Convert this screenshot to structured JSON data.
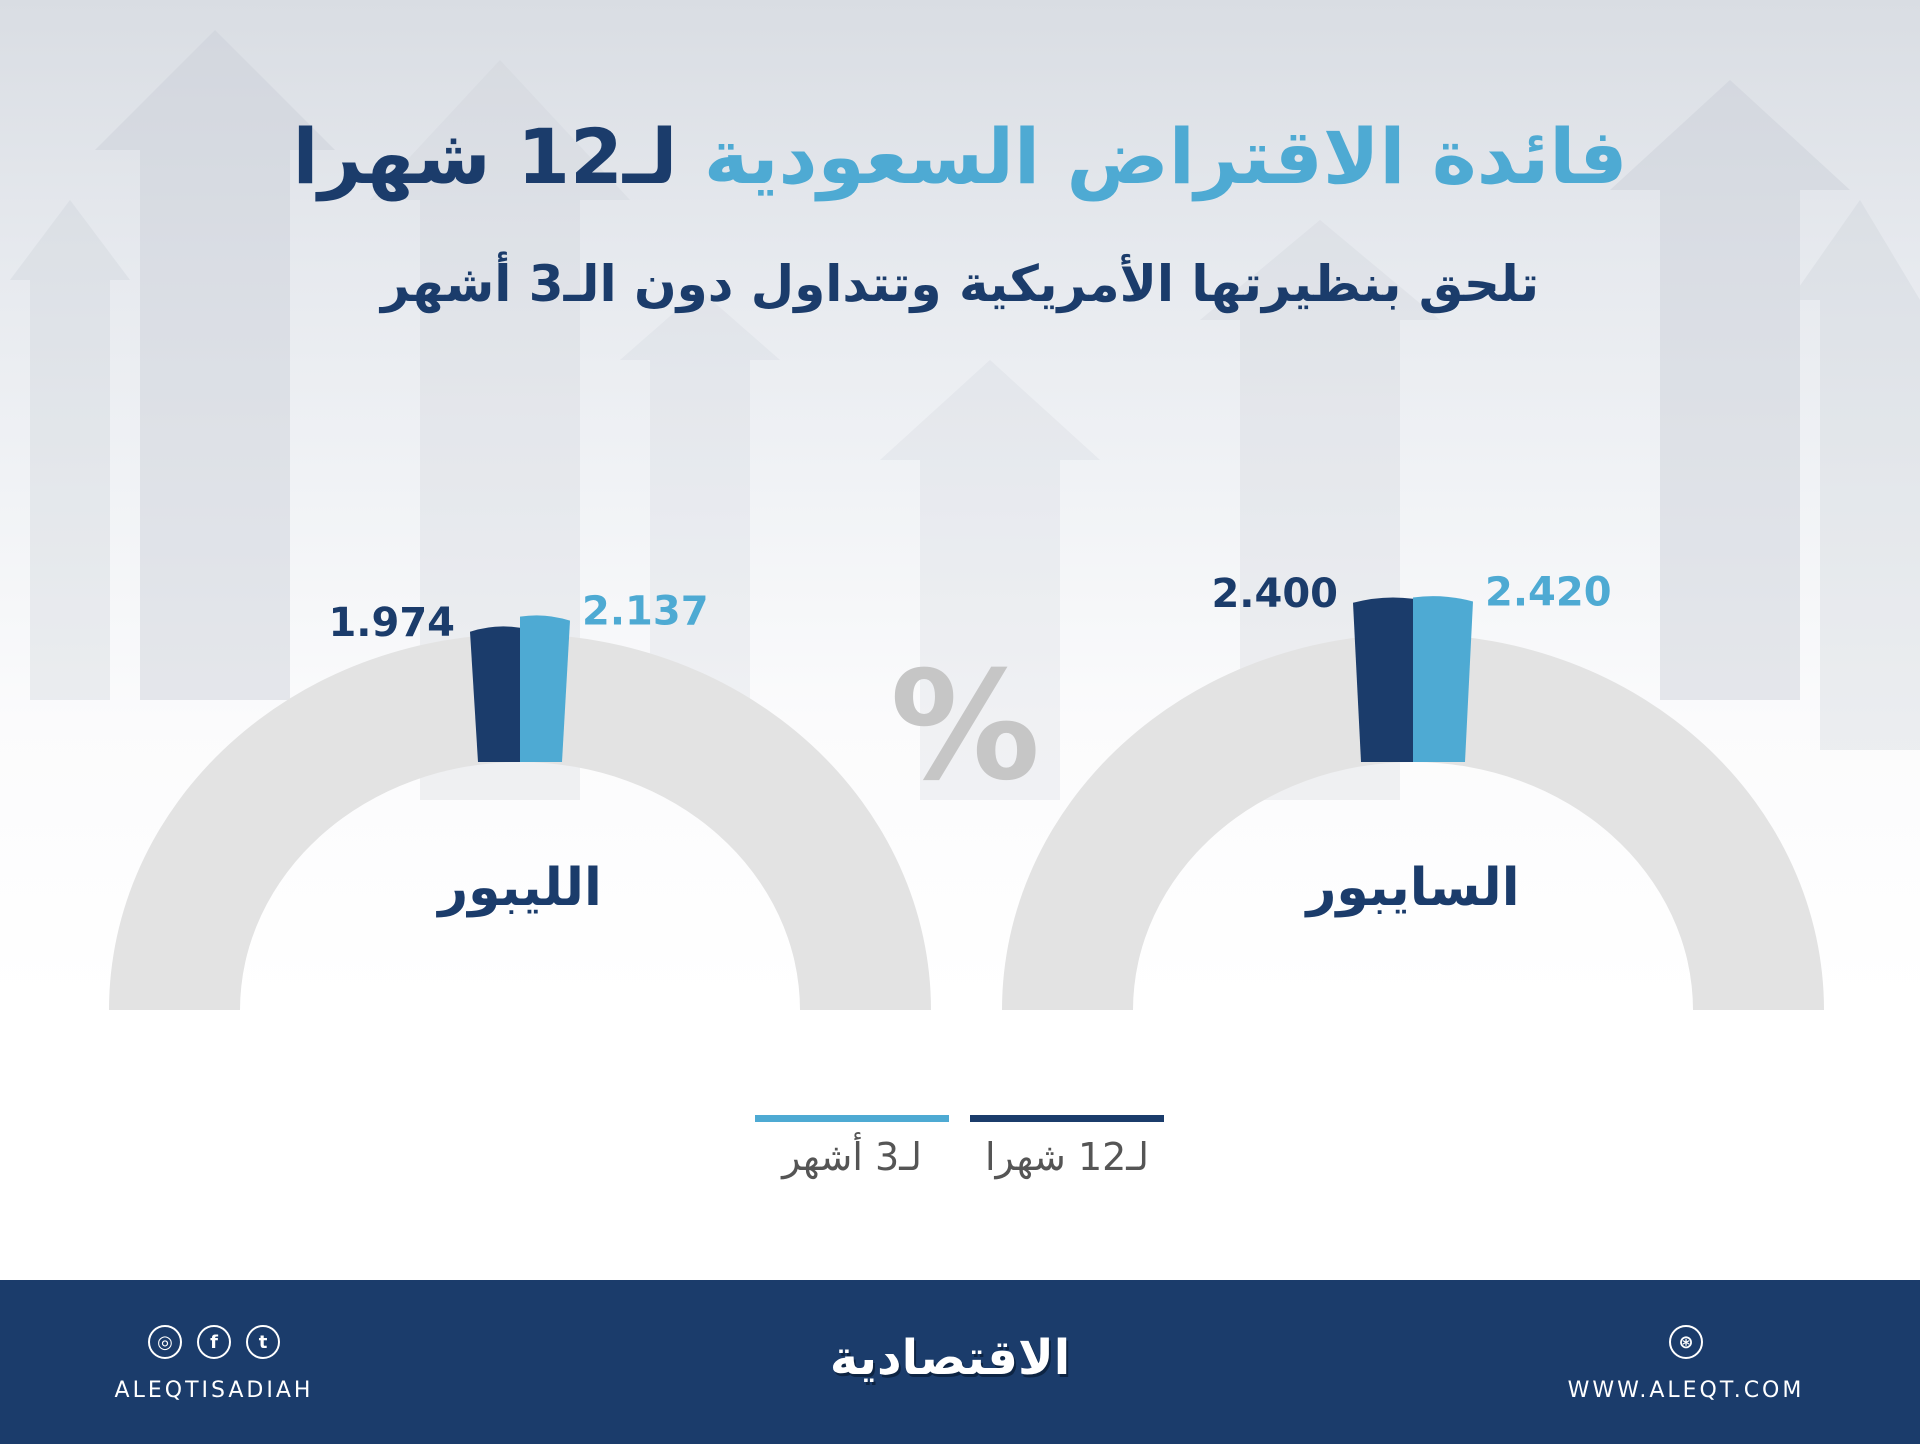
{
  "title": {
    "part_accent": "فائدة الاقتراض السعودية",
    "part_dark": "لـ12 شهرا"
  },
  "subtitle": "تلحق بنظيرتها الأمريكية وتتداول دون الـ3 أشهر",
  "percent_symbol": "%",
  "colors": {
    "dark": "#1b3c6b",
    "light": "#4eaad3",
    "gauge": "#e3e3e3",
    "footer": "#1b3c6b"
  },
  "chart_data": {
    "type": "bar",
    "title": "فائدة الاقتراض السعودية لـ12 شهرا",
    "unit": "%",
    "categories": [
      "الليبور",
      "السايبور"
    ],
    "series": [
      {
        "name": "لـ12 شهرا",
        "color": "#1b3c6b",
        "values": [
          1.974,
          2.4
        ],
        "labels": [
          "1.974",
          "2.400"
        ]
      },
      {
        "name": "لـ3 أشهر",
        "color": "#4eaad3",
        "values": [
          2.137,
          2.42
        ],
        "labels": [
          "2.137",
          "2.420"
        ]
      }
    ],
    "legend": "bottom-center"
  },
  "footer": {
    "social_handle": "ALEQTISADIAH",
    "logo_text": "الاقتصادية",
    "website": "WWW.ALEQT.COM",
    "icons": [
      "instagram-icon",
      "facebook-icon",
      "twitter-icon",
      "dribbble-icon"
    ],
    "icon_glyphs": {
      "instagram": "◎",
      "facebook": "f",
      "twitter": "t",
      "web": "⊛"
    }
  }
}
